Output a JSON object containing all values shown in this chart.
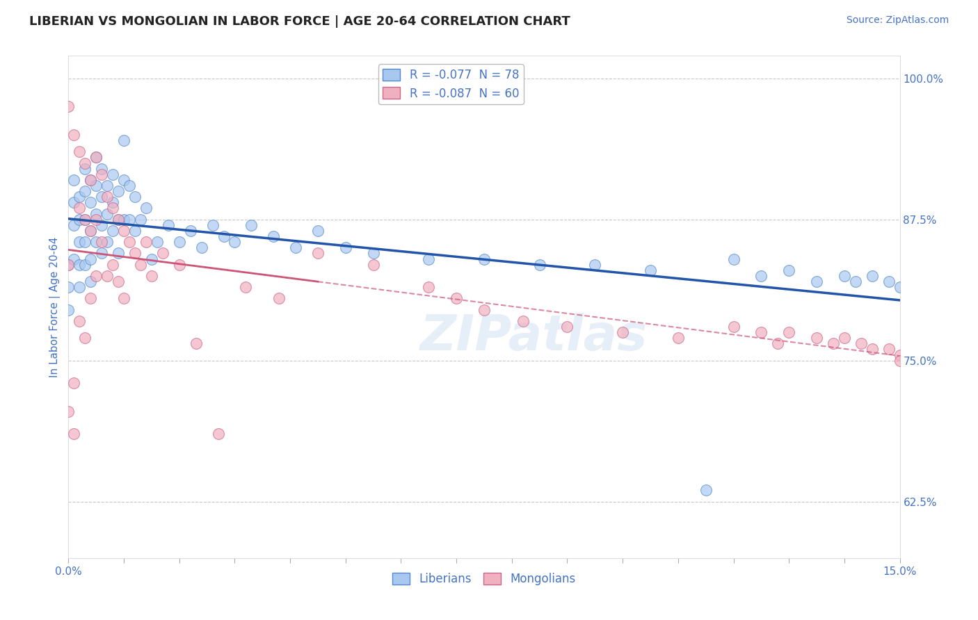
{
  "title": "LIBERIAN VS MONGOLIAN IN LABOR FORCE | AGE 20-64 CORRELATION CHART",
  "source_text": "Source: ZipAtlas.com",
  "ylabel": "In Labor Force | Age 20-64",
  "xlim": [
    0.0,
    0.15
  ],
  "ylim": [
    0.575,
    1.02
  ],
  "ytick_labels": [
    "62.5%",
    "75.0%",
    "87.5%",
    "100.0%"
  ],
  "ytick_positions": [
    0.625,
    0.75,
    0.875,
    1.0
  ],
  "grid_color": "#c8c8c8",
  "background_color": "#ffffff",
  "blue_scatter_color": "#a8c8f0",
  "blue_edge_color": "#5588cc",
  "blue_line_color": "#2255aa",
  "pink_scatter_color": "#f0b0c0",
  "pink_edge_color": "#cc6688",
  "pink_line_color": "#cc5577",
  "label_color": "#4472c4",
  "watermark": "ZIPatlas",
  "liberian_x": [
    0.0,
    0.0,
    0.0,
    0.001,
    0.001,
    0.001,
    0.001,
    0.002,
    0.002,
    0.002,
    0.002,
    0.002,
    0.003,
    0.003,
    0.003,
    0.003,
    0.003,
    0.004,
    0.004,
    0.004,
    0.004,
    0.004,
    0.005,
    0.005,
    0.005,
    0.005,
    0.006,
    0.006,
    0.006,
    0.006,
    0.007,
    0.007,
    0.007,
    0.008,
    0.008,
    0.008,
    0.009,
    0.009,
    0.009,
    0.01,
    0.01,
    0.01,
    0.011,
    0.011,
    0.012,
    0.012,
    0.013,
    0.014,
    0.015,
    0.016,
    0.018,
    0.02,
    0.022,
    0.024,
    0.026,
    0.028,
    0.03,
    0.033,
    0.037,
    0.041,
    0.045,
    0.05,
    0.055,
    0.065,
    0.075,
    0.085,
    0.095,
    0.105,
    0.115,
    0.12,
    0.125,
    0.13,
    0.135,
    0.14,
    0.142,
    0.145,
    0.148,
    0.15
  ],
  "liberian_y": [
    0.835,
    0.815,
    0.795,
    0.91,
    0.89,
    0.87,
    0.84,
    0.895,
    0.875,
    0.855,
    0.835,
    0.815,
    0.92,
    0.9,
    0.875,
    0.855,
    0.835,
    0.91,
    0.89,
    0.865,
    0.84,
    0.82,
    0.93,
    0.905,
    0.88,
    0.855,
    0.92,
    0.895,
    0.87,
    0.845,
    0.905,
    0.88,
    0.855,
    0.915,
    0.89,
    0.865,
    0.9,
    0.875,
    0.845,
    0.945,
    0.91,
    0.875,
    0.905,
    0.875,
    0.895,
    0.865,
    0.875,
    0.885,
    0.84,
    0.855,
    0.87,
    0.855,
    0.865,
    0.85,
    0.87,
    0.86,
    0.855,
    0.87,
    0.86,
    0.85,
    0.865,
    0.85,
    0.845,
    0.84,
    0.84,
    0.835,
    0.835,
    0.83,
    0.635,
    0.84,
    0.825,
    0.83,
    0.82,
    0.825,
    0.82,
    0.825,
    0.82,
    0.815
  ],
  "mongolian_x": [
    0.0,
    0.0,
    0.0,
    0.001,
    0.001,
    0.001,
    0.002,
    0.002,
    0.002,
    0.003,
    0.003,
    0.003,
    0.004,
    0.004,
    0.004,
    0.005,
    0.005,
    0.005,
    0.006,
    0.006,
    0.007,
    0.007,
    0.008,
    0.008,
    0.009,
    0.009,
    0.01,
    0.01,
    0.011,
    0.012,
    0.013,
    0.014,
    0.015,
    0.017,
    0.02,
    0.023,
    0.027,
    0.032,
    0.038,
    0.045,
    0.055,
    0.065,
    0.07,
    0.075,
    0.082,
    0.09,
    0.1,
    0.11,
    0.12,
    0.125,
    0.128,
    0.13,
    0.135,
    0.138,
    0.14,
    0.143,
    0.145,
    0.148,
    0.15,
    0.15
  ],
  "mongolian_y": [
    0.975,
    0.835,
    0.705,
    0.95,
    0.73,
    0.685,
    0.935,
    0.885,
    0.785,
    0.925,
    0.875,
    0.77,
    0.91,
    0.865,
    0.805,
    0.93,
    0.875,
    0.825,
    0.915,
    0.855,
    0.895,
    0.825,
    0.885,
    0.835,
    0.875,
    0.82,
    0.865,
    0.805,
    0.855,
    0.845,
    0.835,
    0.855,
    0.825,
    0.845,
    0.835,
    0.765,
    0.685,
    0.815,
    0.805,
    0.845,
    0.835,
    0.815,
    0.805,
    0.795,
    0.785,
    0.78,
    0.775,
    0.77,
    0.78,
    0.775,
    0.765,
    0.775,
    0.77,
    0.765,
    0.77,
    0.765,
    0.76,
    0.76,
    0.755,
    0.75
  ]
}
